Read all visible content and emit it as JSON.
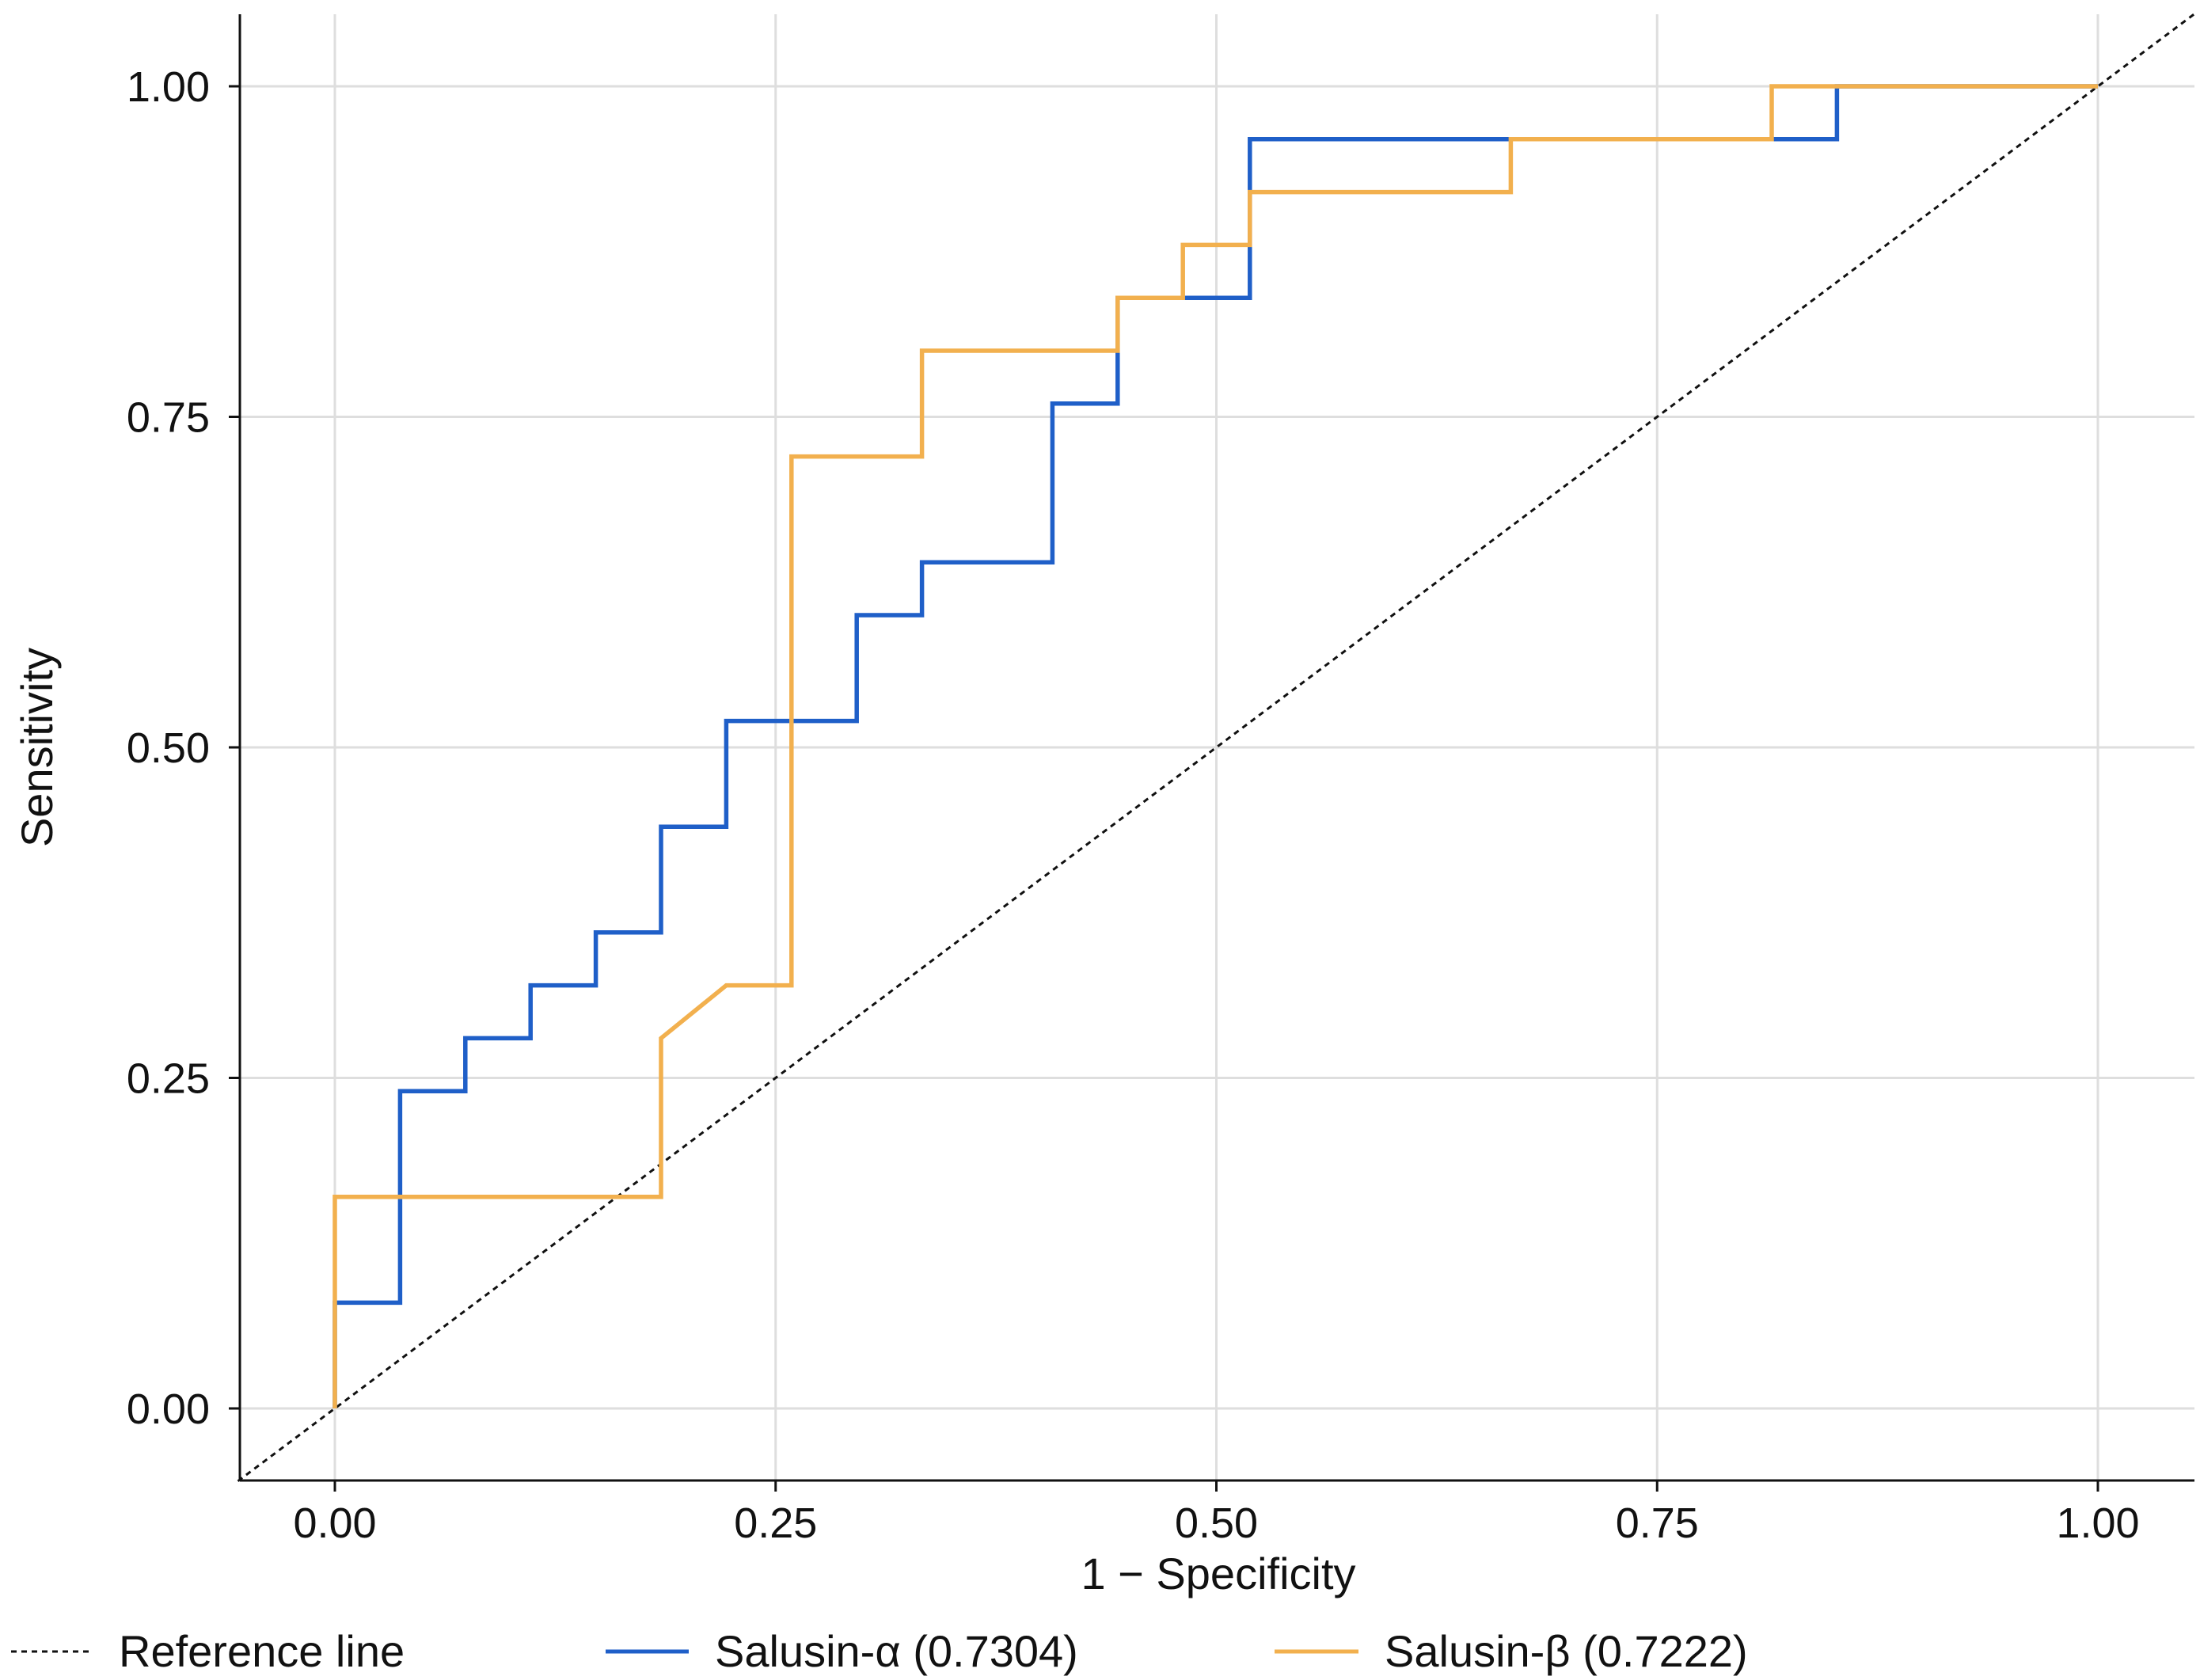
{
  "chart_data": {
    "type": "line",
    "title": "",
    "xlabel": "1 − Specificity",
    "ylabel": "Sensitivity",
    "xlim": [
      -0.055,
      1.055
    ],
    "ylim": [
      -0.055,
      1.055
    ],
    "xticks": [
      0,
      0.25,
      0.5,
      0.75,
      1
    ],
    "yticks": [
      0,
      0.25,
      0.5,
      0.75,
      1
    ],
    "xtick_labels": [
      "0.00",
      "0.25",
      "0.50",
      "0.75",
      "1.00"
    ],
    "ytick_labels": [
      "0.00",
      "0.25",
      "0.50",
      "0.75",
      "1.00"
    ],
    "grid": true,
    "legend_position": "bottom",
    "series": [
      {
        "name": "Reference line",
        "color": "#111111",
        "style": "dashed",
        "x": [
          -0.055,
          1.055
        ],
        "y": [
          -0.055,
          1.055
        ]
      },
      {
        "name": "Salusin-α (0.7304)",
        "color": "#1f5fc8",
        "style": "solid",
        "x": [
          0,
          0,
          0.037,
          0.037,
          0.074,
          0.074,
          0.111,
          0.111,
          0.148,
          0.148,
          0.185,
          0.185,
          0.222,
          0.222,
          0.296,
          0.296,
          0.333,
          0.333,
          0.407,
          0.407,
          0.444,
          0.444,
          0.481,
          0.481,
          0.519,
          0.519,
          0.667,
          0.667,
          0.815,
          0.815,
          0.852,
          0.852,
          1
        ],
        "y": [
          0,
          0.08,
          0.08,
          0.24,
          0.24,
          0.28,
          0.28,
          0.32,
          0.32,
          0.36,
          0.36,
          0.44,
          0.44,
          0.52,
          0.52,
          0.6,
          0.6,
          0.64,
          0.64,
          0.76,
          0.76,
          0.84,
          0.84,
          0.84,
          0.84,
          0.96,
          0.96,
          0.96,
          0.96,
          0.96,
          0.96,
          1,
          1
        ]
      },
      {
        "name": "Salusin-β (0.7222)",
        "color": "#f2b04e",
        "style": "solid",
        "x": [
          0,
          0,
          0.185,
          0.185,
          0.222,
          0.259,
          0.259,
          0.333,
          0.333,
          0.444,
          0.444,
          0.481,
          0.481,
          0.519,
          0.519,
          0.667,
          0.667,
          0.815,
          0.815,
          1
        ],
        "y": [
          0,
          0.16,
          0.16,
          0.28,
          0.32,
          0.32,
          0.72,
          0.72,
          0.8,
          0.8,
          0.84,
          0.84,
          0.88,
          0.88,
          0.92,
          0.92,
          0.96,
          0.96,
          1,
          1
        ]
      }
    ]
  }
}
